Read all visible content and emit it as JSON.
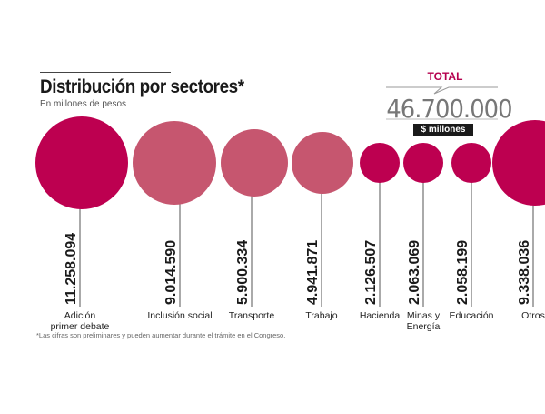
{
  "chart_data": {
    "type": "bubble",
    "title": "Distribución por sectores*",
    "subtitle": "En millones de pesos",
    "unit": "$ millones",
    "total_label": "TOTAL",
    "total_value": "46.700.000",
    "footnote": "*Las cifras son preliminares y pueden aumentar durante el trámite en el Congreso.",
    "categories": [
      "Adición primer debate",
      "Inclusión social",
      "Transporte",
      "Trabajo",
      "Hacienda",
      "Minas y Energía",
      "Educación",
      "Otros"
    ],
    "labels": [
      "Adición\nprimer debate",
      "Inclusión social",
      "Transporte",
      "Trabajo",
      "Hacienda",
      "Minas y\nEnergía",
      "Educación",
      "Otros"
    ],
    "value_labels": [
      "11.258.094",
      "9.014.590",
      "5.900.334",
      "4.941.871",
      "2.126.507",
      "2.063.069",
      "2.058.199",
      "9.338.036"
    ],
    "values": [
      11258094,
      9014590,
      5900334,
      4941871,
      2126507,
      2063069,
      2058199,
      9338036
    ],
    "colors": [
      "#bd0050",
      "#c6566f",
      "#c6566f",
      "#c6566f",
      "#bd0050",
      "#bd0050",
      "#bd0050",
      "#bd0050"
    ]
  }
}
